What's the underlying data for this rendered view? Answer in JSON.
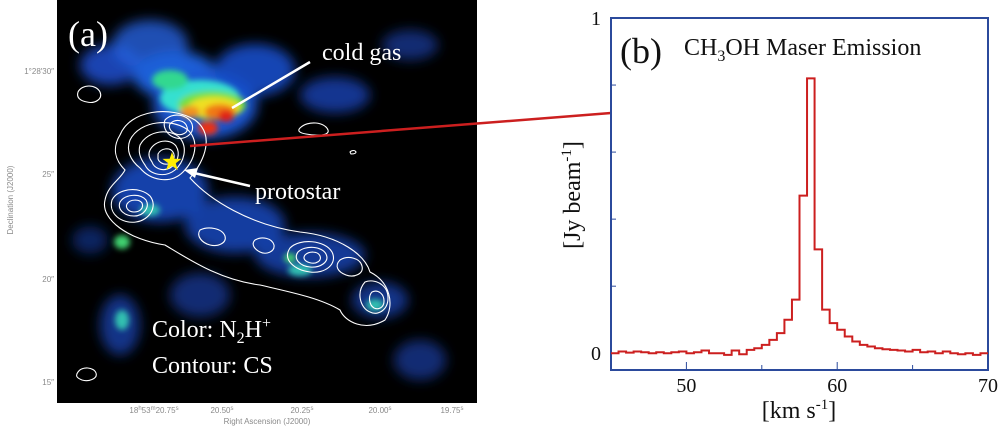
{
  "panel_a": {
    "label": "(a)",
    "annotations": {
      "cold_gas": "cold gas",
      "protostar": "protostar"
    },
    "legend": {
      "color": {
        "prefix": "Color: N",
        "sub": "2",
        "mid": "H",
        "sup": "+"
      },
      "contour": "Contour: CS"
    },
    "dec_ticks": [
      "1°28′30″",
      "25″",
      "20″",
      "15″"
    ],
    "ra_ticks": [
      {
        "h": "18",
        "m": "53",
        "s": "20.75",
        "parts": [
          "18",
          "h",
          "53",
          "m",
          "20.75",
          "s"
        ]
      },
      {
        "s": "20.50",
        "parts": [
          "20.50",
          "s"
        ]
      },
      {
        "s": "20.25",
        "parts": [
          "20.25",
          "s"
        ]
      },
      {
        "s": "20.00",
        "parts": [
          "20.00",
          "s"
        ]
      },
      {
        "s": "19.75",
        "parts": [
          "19.75",
          "s"
        ]
      }
    ],
    "xlabel": "Right Ascension (J2000)",
    "ylabel": "Declination (J2000)",
    "colors": {
      "background": "#000000",
      "contour": "#ffffff",
      "star": "#ffee00",
      "connector": "#cc1f1f"
    }
  },
  "chart_data": {
    "type": "line",
    "label": "(b)",
    "title_parts": [
      "CH",
      "3",
      "OH Maser Emission"
    ],
    "xlabel": "[km s-1]",
    "xlabel_parts": [
      "[km s",
      "-1",
      "]"
    ],
    "ylabel": "[Jy beam-1]",
    "ylabel_parts": [
      "[Jy beam",
      "-1",
      "]"
    ],
    "xlim": [
      45,
      70
    ],
    "ylim": [
      -0.05,
      1.0
    ],
    "xticks": [
      50,
      60,
      70
    ],
    "yticks": [
      0,
      1
    ],
    "style": "step",
    "color": "#cc1f1f",
    "frame_color": "#2b4a9c",
    "x": [
      45.0,
      45.5,
      46.0,
      46.5,
      47.0,
      47.5,
      48.0,
      48.5,
      49.0,
      49.5,
      50.0,
      50.5,
      51.0,
      51.5,
      52.0,
      52.5,
      53.0,
      53.5,
      54.0,
      54.5,
      55.0,
      55.5,
      56.0,
      56.5,
      57.0,
      57.5,
      58.0,
      58.5,
      59.0,
      59.5,
      60.0,
      60.5,
      61.0,
      61.5,
      62.0,
      62.5,
      63.0,
      63.5,
      64.0,
      64.5,
      65.0,
      65.5,
      66.0,
      66.5,
      67.0,
      67.5,
      68.0,
      68.5,
      69.0,
      69.5
    ],
    "values": [
      0.0,
      0.005,
      0.002,
      0.005,
      0.003,
      0.0,
      0.003,
      0.0,
      0.003,
      0.005,
      0.0,
      0.003,
      0.008,
      0.0,
      0.0,
      -0.005,
      0.008,
      -0.003,
      0.01,
      0.015,
      0.025,
      0.04,
      0.06,
      0.1,
      0.16,
      0.47,
      0.82,
      0.31,
      0.13,
      0.09,
      0.07,
      0.05,
      0.035,
      0.025,
      0.02,
      0.015,
      0.012,
      0.01,
      0.008,
      0.005,
      0.01,
      0.003,
      0.005,
      0.0,
      0.005,
      0.0,
      -0.003,
      0.0,
      -0.005,
      0.0
    ]
  }
}
